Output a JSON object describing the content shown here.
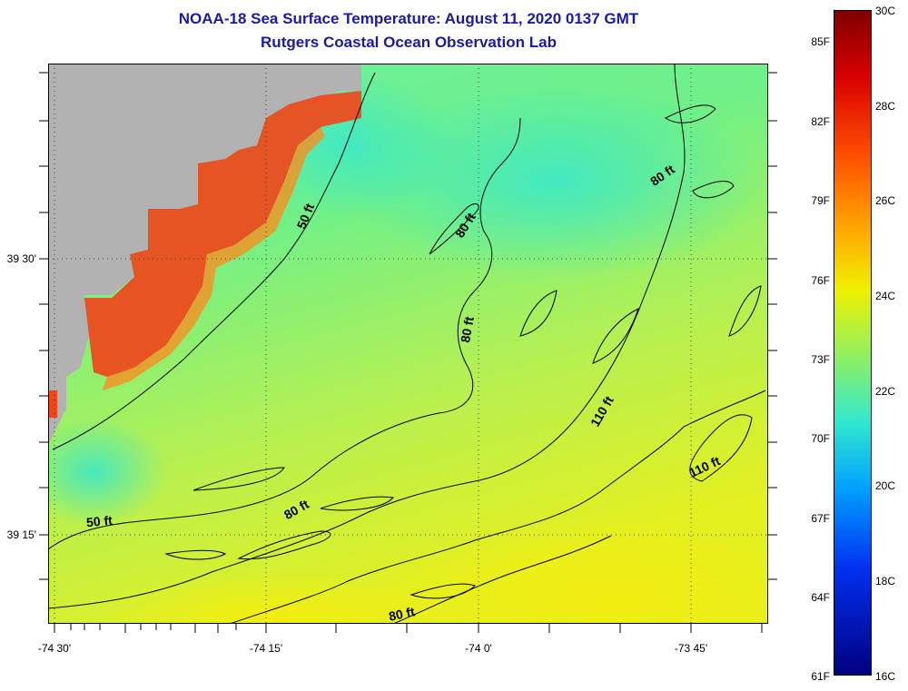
{
  "title": {
    "line1": "NOAA-18 Sea Surface Temperature:  August 11, 2020 0137 GMT",
    "line2": "Rutgers Coastal Ocean Observation Lab"
  },
  "colors": {
    "land": "#b2b2b2",
    "warm_coast": "#f0461a",
    "cool_sea": "#40e8c0",
    "mid_sea": "#7ff080",
    "warm_sea": "#d8f030",
    "contour": "#000000"
  },
  "axes": {
    "lat_labels": [
      "39 30'",
      "39 15'"
    ],
    "lon_labels": [
      "-74 30'",
      "-74 15'",
      "-74 0'",
      "-73 45'"
    ]
  },
  "contour_labels": [
    "50 ft",
    "80 ft",
    "80 ft",
    "80 ft",
    "110 ft",
    "110 ft",
    "50 ft",
    "80 ft",
    "80 ft"
  ],
  "colorbar": {
    "fahrenheit": [
      "85F",
      "82F",
      "79F",
      "76F",
      "73F",
      "70F",
      "67F",
      "64F",
      "61F"
    ],
    "celsius": [
      "30C",
      "28C",
      "26C",
      "24C",
      "22C",
      "20C",
      "18C",
      "16C"
    ]
  }
}
